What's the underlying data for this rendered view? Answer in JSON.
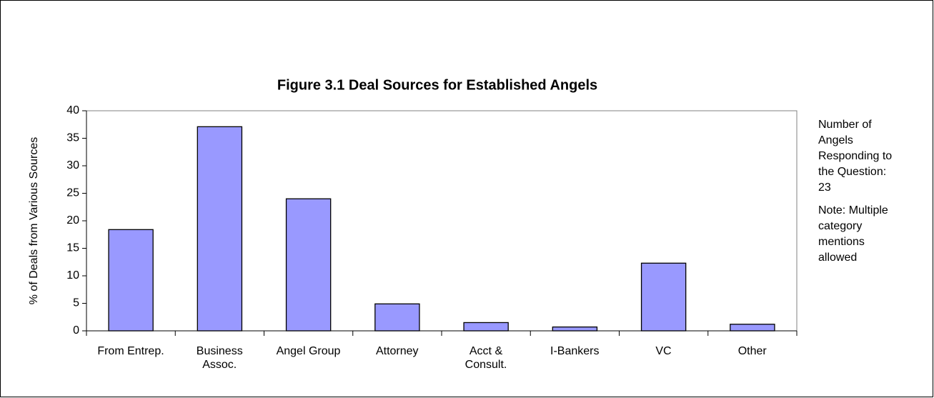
{
  "chart_data": {
    "type": "bar",
    "title": "Figure 3.1 Deal Sources for Established Angels",
    "y_label": "% of Deals from Various Sources",
    "categories": [
      "From Entrep.",
      "Business\nAssoc.",
      "Angel Group",
      "Attorney",
      "Acct &\nConsult.",
      "I-Bankers",
      "VC",
      "Other"
    ],
    "values": [
      18.4,
      37.1,
      24,
      4.9,
      1.5,
      0.7,
      12.3,
      1.2
    ],
    "color": "#9999ff",
    "ylim": [
      0,
      40
    ],
    "yticks": [
      0,
      5,
      10,
      15,
      20,
      25,
      30,
      35,
      40
    ],
    "grid": false,
    "annotations": [
      "Number of\nAngels\nResponding to\nthe Question:\n23",
      "Note: Multiple\ncategory\nmentions\nallowed"
    ]
  }
}
